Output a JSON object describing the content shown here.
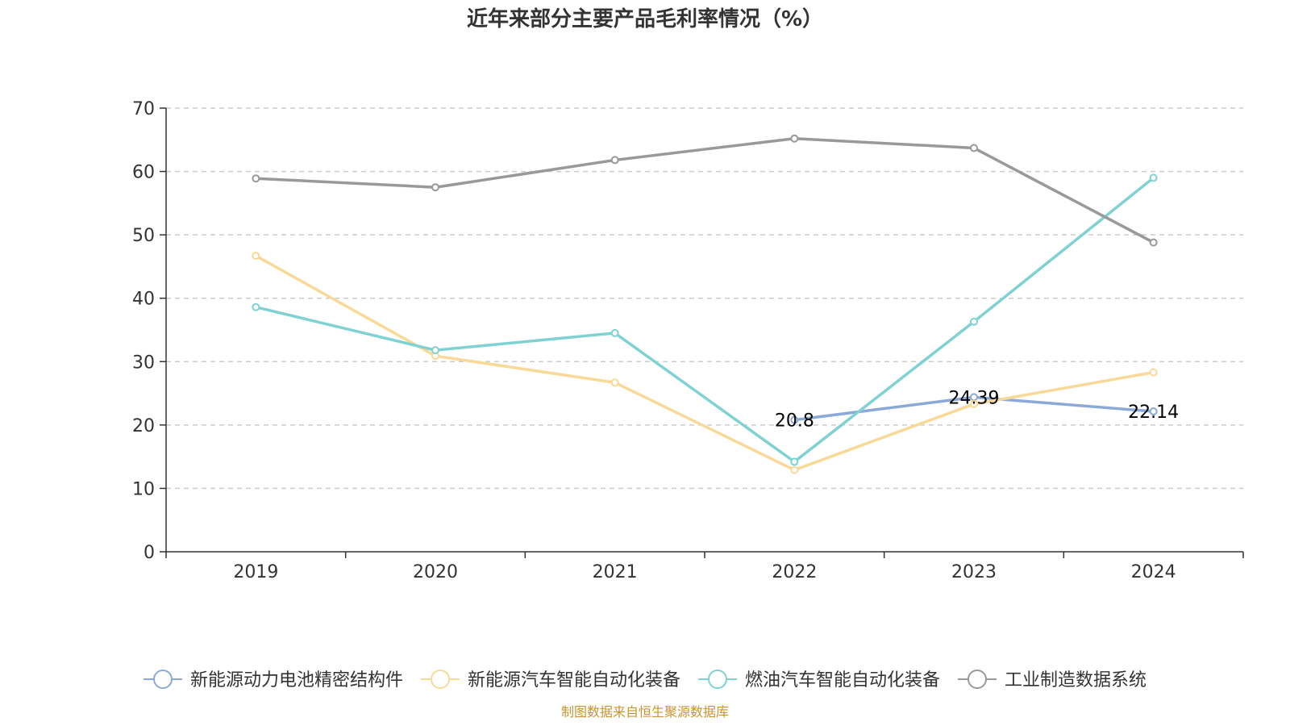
{
  "chart_data": {
    "type": "line",
    "title": "近年来部分主要产品毛利率情况（%）",
    "categories": [
      "2019",
      "2020",
      "2021",
      "2022",
      "2023",
      "2024"
    ],
    "ylim": [
      0,
      70
    ],
    "yticks": [
      0,
      10,
      20,
      30,
      40,
      50,
      60,
      70
    ],
    "grid": true,
    "legend_position": "bottom",
    "series": [
      {
        "name": "新能源动力电池精密结构件",
        "color": "#8ba9d6",
        "values": [
          null,
          null,
          null,
          20.8,
          24.39,
          22.14
        ],
        "labels": [
          "",
          "",
          "",
          "20.8",
          "24.39",
          "22.14"
        ]
      },
      {
        "name": "新能源汽车智能自动化装备",
        "color": "#f9d998",
        "values": [
          46.7,
          30.9,
          26.7,
          12.9,
          23.3,
          28.3
        ],
        "labels": [
          "",
          "",
          "",
          "",
          "",
          ""
        ]
      },
      {
        "name": "燃油汽车智能自动化装备",
        "color": "#7fd1d3",
        "values": [
          38.6,
          31.8,
          34.5,
          14.2,
          36.3,
          59.0
        ],
        "labels": [
          "",
          "",
          "",
          "",
          "",
          ""
        ]
      },
      {
        "name": "工业制造数据系统",
        "color": "#999999",
        "values": [
          58.9,
          57.5,
          61.8,
          65.2,
          63.7,
          48.8
        ],
        "labels": [
          "",
          "",
          "",
          "",
          "",
          ""
        ]
      }
    ],
    "source": "制图数据来自恒生聚源数据库"
  }
}
